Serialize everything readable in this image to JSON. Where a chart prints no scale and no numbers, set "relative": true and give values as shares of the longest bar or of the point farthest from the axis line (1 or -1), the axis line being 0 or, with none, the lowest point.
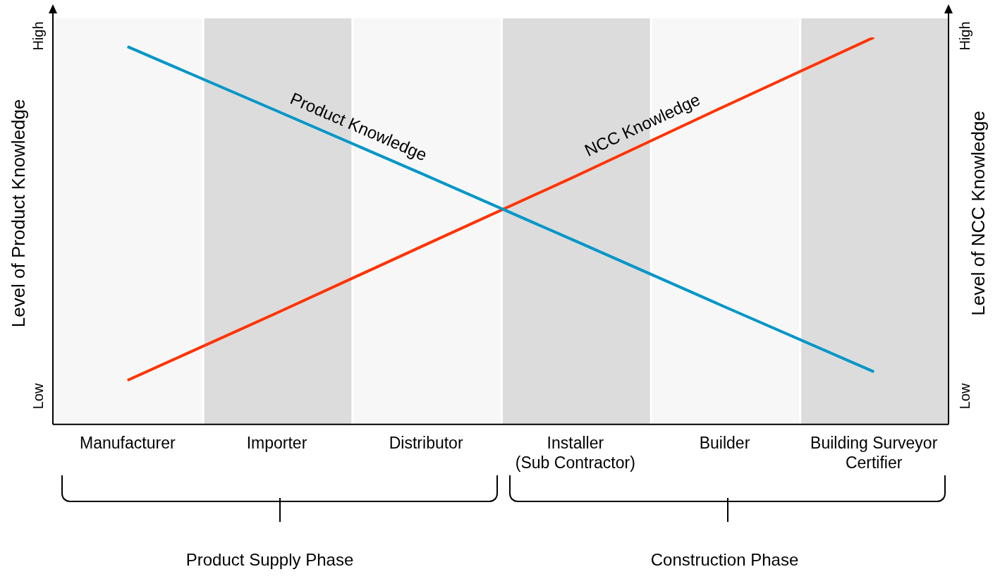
{
  "chart_data": {
    "type": "line",
    "relative": true,
    "categories": [
      "Manufacturer",
      "Importer",
      "Distributor",
      "Installer\n(Sub Contractor)",
      "Builder",
      "Building Surveyor\nCertifier"
    ],
    "series": [
      {
        "name": "Product Knowledge",
        "color": "#0096c8",
        "values": [
          0.976,
          0.81,
          0.643,
          0.474,
          0.304,
          0.136
        ]
      },
      {
        "name": "NCC Knowledge",
        "color": "#ff3300",
        "values": [
          0.114,
          0.288,
          0.465,
          0.641,
          0.822,
          1
        ]
      }
    ],
    "ylabel": "Level of Product Knowledge",
    "y2label": "Level of NCC Knowledge",
    "bands": [
      {
        "axis": "x",
        "from": "Manufacturer",
        "to": "Manufacturer",
        "color": "#f7f7f7"
      },
      {
        "axis": "x",
        "from": "Importer",
        "to": "Importer",
        "color": "#dcdcdc"
      },
      {
        "axis": "x",
        "from": "Distributor",
        "to": "Distributor",
        "color": "#f7f7f7"
      },
      {
        "axis": "x",
        "from": "Builder",
        "to": "Builder",
        "color": "#f7f7f7"
      },
      {
        "axis": "x",
        "from": "Installer\n(Sub Contractor)",
        "to": "Installer\n(Sub Contractor)",
        "color": "#dcdcdc"
      },
      {
        "axis": "x",
        "from": "Building Surveyor\nCertifier",
        "to": "Building Surveyor\nCertifier",
        "color": "#dcdcdc"
      }
    ],
    "annotations": [
      "High",
      "Low",
      "High",
      "Low",
      "Product Supply Phase",
      "Construction Phase"
    ],
    "legend": false,
    "marker": "none",
    "line_style": "solid"
  }
}
